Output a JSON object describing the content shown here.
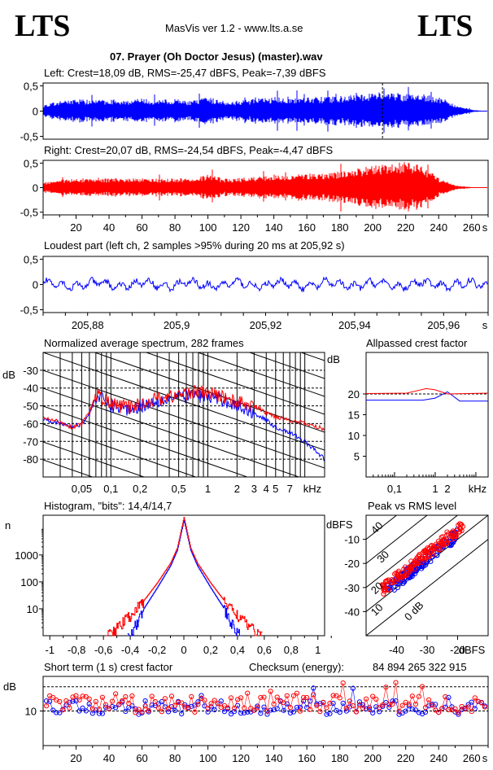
{
  "header": {
    "logo_left": "LTS",
    "logo_right": "LTS",
    "app_title": "MasVis ver 1.2 - www.lts.a.se",
    "file_title": "07. Prayer (Oh Doctor Jesus) (master).wav"
  },
  "left_channel": {
    "label": "Left: Crest=18,09 dB, RMS=-25,47 dBFS, Peak=-7,39 dBFS",
    "y_ticks": [
      "0,5",
      "0",
      "-0,5"
    ],
    "color": "#0000ff"
  },
  "right_channel": {
    "label": "Right: Crest=20,07 dB, RMS=-24,54 dBFS, Peak=-4,47 dBFS",
    "y_ticks": [
      "0,5",
      "0",
      "-0,5"
    ],
    "x_ticks": [
      "20",
      "40",
      "60",
      "80",
      "100",
      "120",
      "140",
      "160",
      "180",
      "200",
      "220",
      "240",
      "260",
      "s"
    ],
    "color": "#ff0000"
  },
  "loudest_part": {
    "label": "Loudest part (left  ch, 2 samples >95% during 20 ms at 205,92 s)",
    "y_ticks": [
      "0,5",
      "0",
      "-0,5"
    ],
    "x_ticks": [
      "205,88",
      "205,9",
      "205,92",
      "205,94",
      "205,96",
      "s"
    ]
  },
  "spectrum": {
    "label": "Normalized average spectrum, 282 frames",
    "y_unit": "dB",
    "y_ticks": [
      "-30",
      "-40",
      "-50",
      "-60",
      "-70",
      "-80"
    ],
    "x_ticks": [
      "0,05",
      "0,1",
      "0,2",
      "0,5",
      "1",
      "2",
      "3",
      "4",
      "5",
      "7",
      "kHz"
    ]
  },
  "allpassed_crest": {
    "label": "Allpassed crest factor",
    "y_unit": "dB",
    "y_ticks": [
      "20",
      "15",
      "10",
      "5"
    ],
    "x_ticks": [
      "0,1",
      "1",
      "2",
      "kHz"
    ]
  },
  "histogram": {
    "label": "Histogram, \"bits\": 14,4/14,7",
    "y_unit": "n",
    "y_ticks": [
      "1000",
      "100",
      "10"
    ],
    "x_ticks": [
      "-1",
      "-0,8",
      "-0,6",
      "-0,4",
      "-0,2",
      "0",
      "0,2",
      "0,4",
      "0,6",
      "0,8",
      "1"
    ]
  },
  "peak_vs_rms": {
    "label": "Peak vs RMS level",
    "y_unit": "dBFS",
    "y_ticks": [
      "-10",
      "-20",
      "-30",
      "-40"
    ],
    "x_ticks": [
      "-40",
      "-30",
      "-20",
      "dBFS"
    ],
    "diagonal_labels": [
      "40",
      "30",
      "20",
      "10",
      "0 dB"
    ]
  },
  "short_term_crest": {
    "label": "Short term (1 s) crest factor",
    "checksum_label": "Checksum (energy):",
    "checksum_value": "84 894 265 322 915",
    "y_unit": "dB",
    "y_ticks": [
      "10"
    ],
    "x_ticks": [
      "20",
      "40",
      "60",
      "80",
      "100",
      "120",
      "140",
      "160",
      "180",
      "200",
      "220",
      "240",
      "260",
      "s"
    ]
  },
  "chart_data": [
    {
      "type": "line",
      "title": "Left: Crest=18,09 dB, RMS=-25,47 dBFS, Peak=-7,39 dBFS",
      "ylim": [
        -1,
        1
      ],
      "xlim": [
        0,
        270
      ],
      "series": [
        {
          "name": "Left",
          "envelope_x": [
            0,
            10,
            20,
            30,
            40,
            50,
            60,
            70,
            80,
            90,
            100,
            110,
            120,
            130,
            140,
            150,
            160,
            170,
            180,
            190,
            200,
            205.92,
            210,
            220,
            230,
            240,
            250,
            260,
            268
          ],
          "envelope_y": [
            0.12,
            0.2,
            0.25,
            0.22,
            0.24,
            0.22,
            0.25,
            0.22,
            0.24,
            0.2,
            0.28,
            0.2,
            0.22,
            0.25,
            0.28,
            0.26,
            0.3,
            0.28,
            0.3,
            0.33,
            0.36,
            0.42,
            0.38,
            0.34,
            0.33,
            0.3,
            0.12,
            0.03,
            0.0
          ]
        }
      ]
    },
    {
      "type": "line",
      "title": "Right: Crest=20,07 dB, RMS=-24,54 dBFS, Peak=-4,47 dBFS",
      "ylim": [
        -1,
        1
      ],
      "xlim": [
        0,
        270
      ],
      "series": [
        {
          "name": "Right",
          "envelope_x": [
            0,
            10,
            20,
            30,
            40,
            50,
            60,
            70,
            80,
            90,
            100,
            110,
            120,
            130,
            140,
            150,
            160,
            170,
            180,
            190,
            200,
            210,
            220,
            230,
            240,
            250,
            260,
            268
          ],
          "envelope_y": [
            0.1,
            0.17,
            0.2,
            0.18,
            0.19,
            0.18,
            0.2,
            0.18,
            0.2,
            0.17,
            0.28,
            0.18,
            0.2,
            0.22,
            0.25,
            0.25,
            0.3,
            0.3,
            0.33,
            0.4,
            0.45,
            0.5,
            0.52,
            0.45,
            0.2,
            0.05,
            0.01,
            0.0
          ]
        }
      ]
    },
    {
      "type": "line",
      "title": "Loudest part (left  ch, 2 samples >95% during 20 ms at 205,92 s)",
      "ylim": [
        -1,
        1
      ],
      "xlim": [
        205.87,
        205.97
      ],
      "amplitude": 0.12
    },
    {
      "type": "line",
      "title": "Normalized average spectrum, 282 frames",
      "ylabel": "dB",
      "ylim": [
        -90,
        -20
      ],
      "xscale": "log",
      "xlim": [
        0.02,
        16
      ],
      "series": [
        {
          "name": "Left",
          "x": [
            0.02,
            0.03,
            0.04,
            0.05,
            0.06,
            0.07,
            0.08,
            0.1,
            0.15,
            0.2,
            0.3,
            0.5,
            0.7,
            1,
            1.5,
            2,
            3,
            4,
            5,
            7,
            10,
            16
          ],
          "y": [
            -57,
            -60,
            -62,
            -60,
            -55,
            -45,
            -46,
            -50,
            -52,
            -50,
            -47,
            -45,
            -44,
            -45,
            -47,
            -50,
            -54,
            -58,
            -62,
            -65,
            -70,
            -80
          ]
        },
        {
          "name": "Right",
          "x": [
            0.02,
            0.03,
            0.04,
            0.05,
            0.06,
            0.07,
            0.08,
            0.1,
            0.15,
            0.2,
            0.3,
            0.5,
            0.7,
            1,
            1.5,
            2,
            3,
            4,
            5,
            7,
            10,
            16
          ],
          "y": [
            -57,
            -59,
            -62,
            -60,
            -54,
            -44,
            -45,
            -49,
            -51,
            -49,
            -46,
            -44,
            -42,
            -43,
            -45,
            -48,
            -50,
            -54,
            -56,
            -58,
            -60,
            -63
          ]
        }
      ]
    },
    {
      "type": "line",
      "title": "Allpassed crest factor",
      "ylabel": "dB",
      "ylim": [
        0,
        30
      ],
      "xscale": "log",
      "xlim": [
        0.02,
        20
      ],
      "series": [
        {
          "name": "Left",
          "x": [
            0.02,
            0.5,
            1,
            2,
            4,
            20
          ],
          "y": [
            18.5,
            18.5,
            19,
            20.5,
            18.3,
            18.3
          ]
        },
        {
          "name": "Right",
          "x": [
            0.02,
            0.2,
            0.6,
            1,
            2,
            20
          ],
          "y": [
            20.1,
            20.2,
            21.3,
            21,
            20,
            20.2
          ]
        }
      ]
    },
    {
      "type": "line",
      "title": "Histogram, \"bits\": 14,4/14,7",
      "ylabel": "n",
      "yscale": "log",
      "ylim": [
        1,
        30000
      ],
      "xlim": [
        -1.05,
        1.05
      ],
      "series": [
        {
          "name": "Left",
          "x": [
            -0.42,
            -0.35,
            -0.3,
            -0.2,
            -0.1,
            -0.05,
            0,
            0.05,
            0.1,
            0.2,
            0.3,
            0.35,
            0.42
          ],
          "y": [
            1,
            3,
            10,
            60,
            400,
            1500,
            20000,
            1500,
            400,
            60,
            10,
            3,
            1
          ]
        },
        {
          "name": "Right",
          "x": [
            -0.58,
            -0.5,
            -0.4,
            -0.3,
            -0.2,
            -0.1,
            -0.05,
            0,
            0.05,
            0.1,
            0.2,
            0.3,
            0.4,
            0.5,
            0.58
          ],
          "y": [
            1,
            2,
            6,
            20,
            90,
            500,
            1800,
            25000,
            1800,
            500,
            90,
            20,
            6,
            2,
            1
          ]
        }
      ]
    },
    {
      "type": "scatter",
      "title": "Peak vs RMS level",
      "xlabel": "dBFS",
      "ylabel": "dBFS",
      "xlim": [
        -50,
        -10
      ],
      "ylim": [
        -50,
        0
      ],
      "series": [
        {
          "name": "Left",
          "x_range": [
            -44,
            -20
          ],
          "crest_db": 12
        },
        {
          "name": "Right",
          "x_range": [
            -45,
            -18
          ],
          "crest_db": 14
        }
      ]
    },
    {
      "type": "scatter",
      "title": "Short term (1 s) crest factor",
      "ylabel": "dB",
      "xlim": [
        0,
        270
      ],
      "ylim": [
        0,
        20
      ],
      "series": [
        {
          "name": "Left",
          "mean": 11,
          "spread": 2
        },
        {
          "name": "Right",
          "mean": 12,
          "spread": 2.5
        }
      ]
    }
  ]
}
